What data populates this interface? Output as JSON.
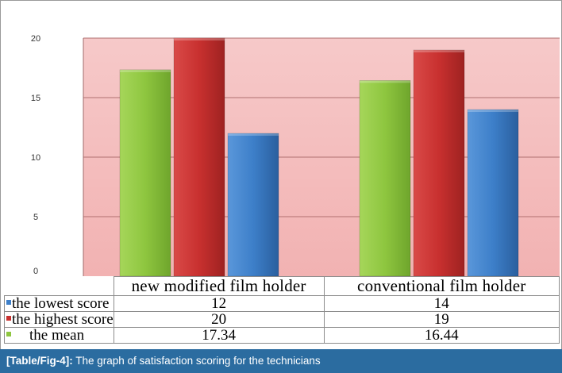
{
  "chart_data": {
    "type": "bar",
    "categories": [
      "new modified film holder",
      "conventional film holder"
    ],
    "series": [
      {
        "name": "the mean",
        "values": [
          17.34,
          16.44
        ],
        "color": "#8ec63f"
      },
      {
        "name": "the highest score",
        "values": [
          20,
          19
        ],
        "color": "#c8302f"
      },
      {
        "name": "the lowest score",
        "values": [
          12,
          14
        ],
        "color": "#3d7fc9"
      }
    ],
    "y_ticks": [
      "0",
      "5",
      "10",
      "15",
      "20"
    ],
    "ylim": [
      0,
      20
    ],
    "grid": true,
    "plot_background": "#f4b8b8",
    "legend": "data table below chart"
  },
  "table": {
    "rows": [
      {
        "label": "the lowest score",
        "values": [
          "12",
          "14"
        ],
        "color": "#3d7fc9"
      },
      {
        "label": "the highest score",
        "values": [
          "20",
          "19"
        ],
        "color": "#c8302f"
      },
      {
        "label": "the mean",
        "values": [
          "17.34",
          "16.44"
        ],
        "color": "#8ec63f"
      }
    ]
  },
  "caption": {
    "tag": "[Table/Fig-4]:",
    "text": " The graph of satisfaction scoring for the technicians"
  }
}
